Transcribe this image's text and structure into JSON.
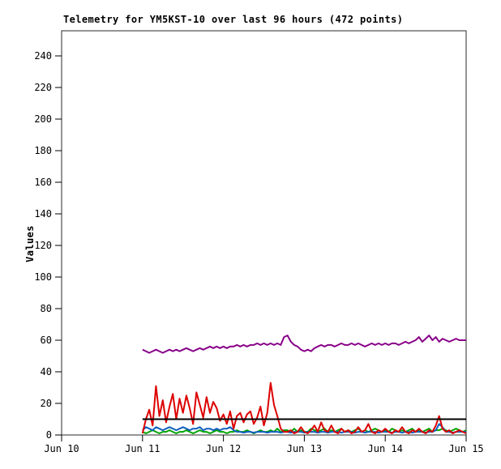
{
  "title": "Telemetry for YM5KST-10 over last 96 hours (472 points)",
  "ylabel": "Values",
  "chart_data": {
    "type": "line",
    "title": "Telemetry for YM5KST-10 over last 96 hours (472 points)",
    "xlabel": "",
    "ylabel": "Values",
    "ylim": [
      0,
      256
    ],
    "y_ticks": [
      0,
      20,
      40,
      60,
      80,
      100,
      120,
      140,
      160,
      180,
      200,
      220,
      240
    ],
    "x_ticks": [
      "Jun 10",
      "Jun 11",
      "Jun 12",
      "Jun 13",
      "Jun 14",
      "Jun 15"
    ],
    "grid": false,
    "legend": "none",
    "x_span_days": 5,
    "data_start_day": 1,
    "data_hours": 96,
    "point_interval_hours": 1,
    "series": [
      {
        "name": "channel-purple",
        "color": "#880088",
        "width": 2,
        "values": [
          54,
          53,
          52,
          53,
          54,
          53,
          52,
          53,
          54,
          53,
          54,
          53,
          54,
          55,
          54,
          53,
          54,
          55,
          54,
          55,
          56,
          55,
          56,
          55,
          56,
          55,
          56,
          56,
          57,
          56,
          57,
          56,
          57,
          57,
          58,
          57,
          58,
          57,
          58,
          57,
          58,
          57,
          62,
          63,
          59,
          57,
          56,
          54,
          53,
          54,
          53,
          55,
          56,
          57,
          56,
          57,
          57,
          56,
          57,
          58,
          57,
          57,
          58,
          57,
          58,
          57,
          56,
          57,
          58,
          57,
          58,
          57,
          58,
          57,
          58,
          58,
          57,
          58,
          59,
          58,
          59,
          60,
          62,
          59,
          61,
          63,
          60,
          62,
          59,
          61,
          60,
          59,
          60,
          61,
          60,
          60,
          60
        ]
      },
      {
        "name": "channel-green",
        "color": "#00a400",
        "width": 2,
        "values": [
          2,
          1,
          2,
          3,
          2,
          1,
          2,
          2,
          3,
          2,
          1,
          2,
          2,
          3,
          2,
          1,
          2,
          3,
          2,
          2,
          1,
          2,
          3,
          2,
          2,
          1,
          2,
          2,
          3,
          2,
          2,
          3,
          2,
          1,
          2,
          3,
          2,
          2,
          3,
          2,
          4,
          2,
          3,
          3,
          2,
          4,
          2,
          3,
          2,
          2,
          4,
          3,
          2,
          3,
          4,
          2,
          3,
          2,
          3,
          4,
          2,
          3,
          2,
          3,
          4,
          2,
          3,
          2,
          3,
          4,
          3,
          2,
          3,
          2,
          4,
          3,
          2,
          3,
          2,
          3,
          4,
          2,
          3,
          2,
          3,
          4,
          2,
          3,
          3,
          4,
          3,
          2,
          3,
          4,
          3,
          2,
          3
        ]
      },
      {
        "name": "channel-blue",
        "color": "#1060c0",
        "width": 2,
        "values": [
          3,
          5,
          4,
          3,
          5,
          4,
          3,
          4,
          5,
          4,
          3,
          4,
          5,
          4,
          3,
          4,
          4,
          5,
          3,
          4,
          4,
          3,
          4,
          3,
          4,
          4,
          5,
          3,
          2,
          2,
          1.5,
          2,
          2,
          1.5,
          2,
          2,
          2,
          1.5,
          2,
          2,
          2,
          1.5,
          2,
          2,
          1.5,
          2,
          2,
          2,
          1.5,
          2,
          2,
          2,
          1.5,
          2,
          2,
          1.5,
          2,
          2,
          2,
          1.5,
          2,
          2,
          2,
          1.5,
          2,
          2,
          1.5,
          2,
          2,
          2,
          1.5,
          2,
          2,
          2,
          1.5,
          2,
          2,
          1.5,
          2,
          2,
          1.5,
          2,
          2,
          2,
          1.5,
          2,
          2,
          3,
          7,
          5,
          2,
          2,
          1.5,
          2,
          2,
          2,
          2
        ]
      },
      {
        "name": "channel-red",
        "color": "#dd0000",
        "width": 2,
        "values": [
          1,
          10,
          16,
          6,
          31,
          12,
          22,
          8,
          18,
          26,
          10,
          23,
          14,
          25,
          17,
          7,
          27,
          19,
          11,
          24,
          14,
          21,
          17,
          9,
          13,
          7,
          15,
          4,
          12,
          14,
          8,
          13,
          15,
          7,
          11,
          18,
          6,
          14,
          33,
          19,
          12,
          4,
          2,
          2,
          3,
          1,
          2,
          5,
          2,
          1,
          3,
          6,
          2,
          8,
          3,
          2,
          6,
          2,
          1,
          4,
          2,
          3,
          1,
          2,
          5,
          2,
          3,
          7,
          2,
          1,
          3,
          2,
          4,
          2,
          1,
          3,
          2,
          5,
          2,
          1,
          3,
          2,
          4,
          2,
          1,
          3,
          2,
          6,
          12,
          4,
          2,
          3,
          1,
          2,
          3,
          2,
          1
        ]
      },
      {
        "name": "threshold-black",
        "color": "#000000",
        "width": 2,
        "constant": 10
      }
    ]
  }
}
